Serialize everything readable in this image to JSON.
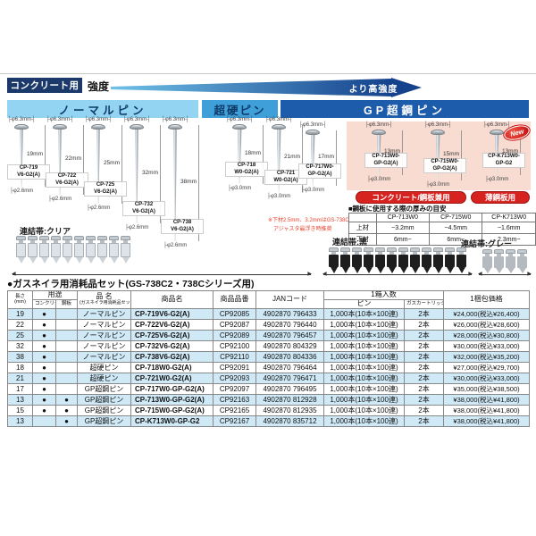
{
  "header": {
    "category": "コンクリート用",
    "strength": "強度",
    "arrow_label": "より高強度"
  },
  "sections": {
    "normal": {
      "title": "ノーマルピン",
      "band_label": "連結帯:クリア",
      "pins": [
        {
          "model": [
            "CP-719",
            "V6-G2(A)"
          ],
          "length_mm": 19,
          "length_label": "19mm",
          "head_dia": "φ6.3mm",
          "shaft_dia": "φ2.6mm"
        },
        {
          "model": [
            "CP-722",
            "V6-G2(A)"
          ],
          "length_mm": 22,
          "length_label": "22mm",
          "head_dia": "φ6.3mm",
          "shaft_dia": "φ2.6mm"
        },
        {
          "model": [
            "CP-725",
            "V6-G2(A)"
          ],
          "length_mm": 25,
          "length_label": "25mm",
          "head_dia": "φ6.3mm",
          "shaft_dia": "φ2.6mm"
        },
        {
          "model": [
            "CP-732",
            "V6-G2(A)"
          ],
          "length_mm": 32,
          "length_label": "32mm",
          "head_dia": "φ6.3mm",
          "shaft_dia": "φ2.6mm"
        },
        {
          "model": [
            "CP-738",
            "V6-G2(A)"
          ],
          "length_mm": 38,
          "length_label": "38mm",
          "head_dia": "φ6.3mm",
          "shaft_dia": "φ2.6mm"
        }
      ]
    },
    "carbide": {
      "title": "超硬ピン",
      "band_label": "連結帯:黒",
      "pins": [
        {
          "model": [
            "CP-718",
            "W0-G2(A)"
          ],
          "length_mm": 18,
          "length_label": "18mm",
          "head_dia": "φ6.3mm",
          "shaft_dia": "φ3.0mm"
        },
        {
          "model": [
            "CP-721",
            "W0-G2(A)"
          ],
          "length_mm": 21,
          "length_label": "21mm",
          "head_dia": "φ6.3mm",
          "shaft_dia": "φ3.0mm"
        }
      ]
    },
    "gp": {
      "title": "GP超鋼ピン",
      "band_label": "連結帯:グレー",
      "note_lines": [
        "※下材2.5mm、3.2mmはGS-738C2の",
        "アジャスタ最浮き時推奨"
      ],
      "pins": [
        {
          "model": [
            "CP-717W0-",
            "GP-G2(A)"
          ],
          "length_mm": 17,
          "length_label": "17mm",
          "head_dia": "φ6.3mm",
          "shaft_dia": "φ3.0mm"
        },
        {
          "model": [
            "CP-713W0-",
            "GP-G2(A)"
          ],
          "length_mm": 13,
          "length_label": "13mm",
          "head_dia": "φ6.3mm",
          "shaft_dia": "φ3.0mm"
        },
        {
          "model": [
            "CP-715W0-",
            "GP-G2(A)"
          ],
          "length_mm": 15,
          "length_label": "15mm",
          "head_dia": "φ6.3mm",
          "shaft_dia": "φ3.0mm"
        },
        {
          "model": [
            "CP-K713W0-",
            "GP-G2"
          ],
          "length_mm": 13,
          "length_label": "13mm",
          "head_dia": "φ6.3mm",
          "shaft_dia": "φ3.0mm",
          "badge": "New"
        }
      ],
      "usage_badges": [
        "コンクリート/鋼板兼用",
        "薄鋼板用"
      ],
      "thickness_table": {
        "title": "■鋼板に使用する際の厚みの目安",
        "columns": [
          "CP-713W0",
          "CP-715W0",
          "CP-K713W0"
        ],
        "rows": [
          {
            "label": "上材",
            "values": [
              "~3.2mm",
              "~4.5mm",
              "~1.6mm"
            ]
          },
          {
            "label": "下材",
            "values": [
              "6mm~",
              "6mm~",
              "2.3mm~"
            ]
          }
        ]
      }
    }
  },
  "table": {
    "title": "●ガスネイラ用消耗品セット(GS-738C2・738Cシリーズ用)",
    "headers": {
      "length_line1": "長さ",
      "length_line2": "(mm)",
      "usage": "用途",
      "usage_concrete": "コンクリート",
      "usage_steel": "鋼板",
      "name": "品 名",
      "name_sub": "(ガスネイラ用消耗品セット)",
      "product": "商品名",
      "code": "商品品番",
      "jan": "JANコード",
      "box": "1箱入数",
      "box_pin": "ピン",
      "box_cartridge": "ガスカートリッジ",
      "price": "1梱包価格"
    },
    "rows": [
      [
        "19",
        "●",
        "",
        "ノーマルピン",
        "CP-719V6-G2(A)",
        "CP92085",
        "4902870 796433",
        "1,000本(10本×100連)",
        "2本",
        "¥24,000(税込¥26,400)"
      ],
      [
        "22",
        "●",
        "",
        "ノーマルピン",
        "CP-722V6-G2(A)",
        "CP92087",
        "4902870 796440",
        "1,000本(10本×100連)",
        "2本",
        "¥26,000(税込¥28,600)"
      ],
      [
        "25",
        "●",
        "",
        "ノーマルピン",
        "CP-725V6-G2(A)",
        "CP92089",
        "4902870 796457",
        "1,000本(10本×100連)",
        "2本",
        "¥28,000(税込¥30,800)"
      ],
      [
        "32",
        "●",
        "",
        "ノーマルピン",
        "CP-732V6-G2(A)",
        "CP92100",
        "4902870 804329",
        "1,000本(10本×100連)",
        "2本",
        "¥30,000(税込¥33,000)"
      ],
      [
        "38",
        "●",
        "",
        "ノーマルピン",
        "CP-738V6-G2(A)",
        "CP92110",
        "4902870 804336",
        "1,000本(10本×100連)",
        "2本",
        "¥32,000(税込¥35,200)"
      ],
      [
        "18",
        "●",
        "",
        "超硬ピン",
        "CP-718W0-G2(A)",
        "CP92091",
        "4902870 796464",
        "1,000本(10本×100連)",
        "2本",
        "¥27,000(税込¥29,700)"
      ],
      [
        "21",
        "●",
        "",
        "超硬ピン",
        "CP-721W0-G2(A)",
        "CP92093",
        "4902870 796471",
        "1,000本(10本×100連)",
        "2本",
        "¥30,000(税込¥33,000)"
      ],
      [
        "17",
        "●",
        "",
        "GP超鋼ピン",
        "CP-717W0-GP-G2(A)",
        "CP92097",
        "4902870 796495",
        "1,000本(10本×100連)",
        "2本",
        "¥35,000(税込¥38,500)"
      ],
      [
        "13",
        "●",
        "●",
        "GP超鋼ピン",
        "CP-713W0-GP-G2(A)",
        "CP92163",
        "4902870 812928",
        "1,000本(10本×100連)",
        "2本",
        "¥38,000(税込¥41,800)"
      ],
      [
        "15",
        "●",
        "●",
        "GP超鋼ピン",
        "CP-715W0-GP-G2(A)",
        "CP92165",
        "4902870 812935",
        "1,000本(10本×100連)",
        "2本",
        "¥38,000(税込¥41,800)"
      ],
      [
        "13",
        "",
        "●",
        "GP超鋼ピン",
        "CP-K713W0-GP-G2",
        "CP92167",
        "4902870 835712",
        "1,000本(10本×100連)",
        "2本",
        "¥38,000(税込¥41,800)"
      ]
    ]
  },
  "colors": {
    "navy": "#1b3a6b",
    "section_light_blue": "#92d4f2",
    "section_mid_blue": "#3f9fd8",
    "section_dark_blue": "#1d5caa",
    "pink_panel": "#f8dcd2",
    "red_badge": "#d6231f",
    "row_alt_blue": "#cfe9f7"
  }
}
